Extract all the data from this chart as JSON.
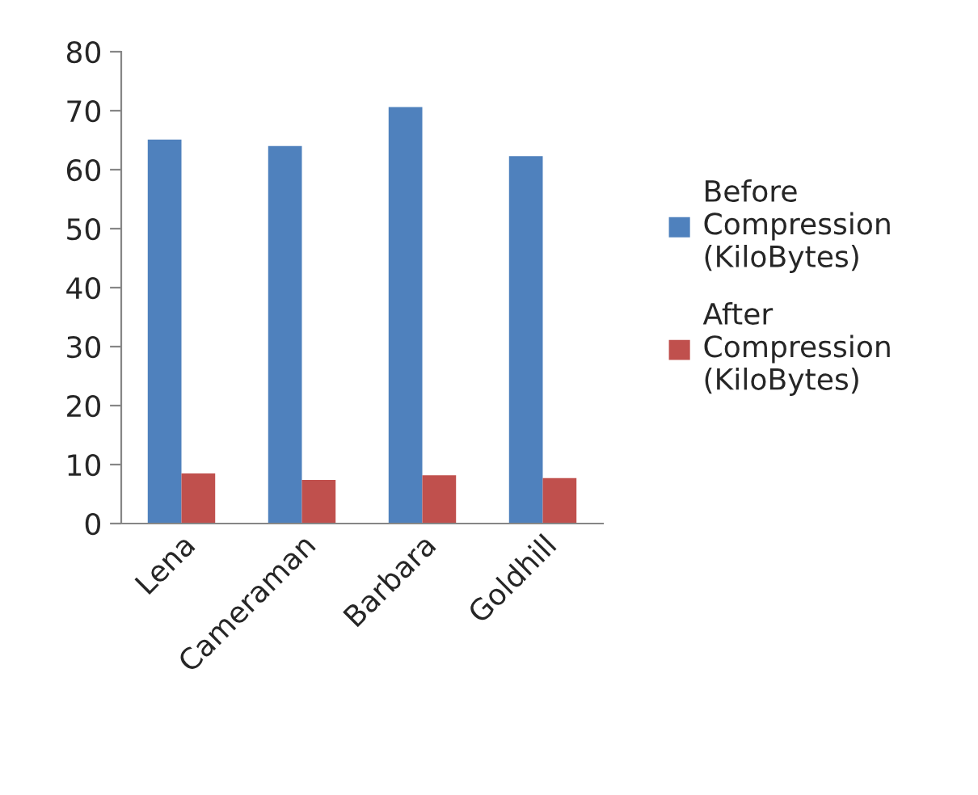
{
  "chart_data": {
    "type": "bar",
    "categories": [
      "Lena",
      "Cameraman",
      "Barbara",
      "Goldhill"
    ],
    "series": [
      {
        "name": "Before\nCompression\n(KiloBytes)",
        "color": "#4f81bd",
        "values": [
          65.1,
          64.0,
          70.6,
          62.3
        ]
      },
      {
        "name": "After\nCompression\n(KiloBytes)",
        "color": "#c0504d",
        "values": [
          8.5,
          7.4,
          8.2,
          7.7
        ]
      }
    ],
    "ylim": [
      0,
      80
    ],
    "yticks": [
      0,
      10,
      20,
      30,
      40,
      50,
      60,
      70,
      80
    ],
    "grid": false,
    "legend": "right"
  }
}
